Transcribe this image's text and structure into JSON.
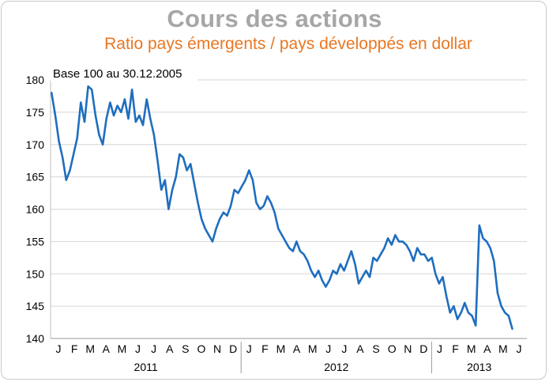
{
  "chart_data": {
    "type": "line",
    "title": "Cours des actions",
    "subtitle": "Ratio pays émergents / pays développés en dollar",
    "annotation": "Base 100 au 30.12.2005",
    "ylim": [
      140,
      180
    ],
    "yticks": [
      140,
      145,
      150,
      155,
      160,
      165,
      170,
      175,
      180
    ],
    "month_labels": [
      "J",
      "F",
      "M",
      "A",
      "M",
      "J",
      "J",
      "A",
      "S",
      "O",
      "N",
      "D",
      "J",
      "F",
      "M",
      "A",
      "M",
      "J",
      "J",
      "A",
      "S",
      "O",
      "N",
      "D",
      "J",
      "F",
      "M",
      "A",
      "M",
      "J"
    ],
    "years": [
      "2011",
      "2012",
      "2013"
    ],
    "grid": true,
    "color": "#1f6ebf",
    "series": [
      {
        "x": [
          "2011-01-03",
          "2011-01-10",
          "2011-01-17",
          "2011-01-24",
          "2011-01-31",
          "2011-02-07",
          "2011-02-14",
          "2011-02-21",
          "2011-02-28",
          "2011-03-07",
          "2011-03-14",
          "2011-03-21",
          "2011-03-28",
          "2011-04-04",
          "2011-04-11",
          "2011-04-18",
          "2011-04-25",
          "2011-05-02",
          "2011-05-09",
          "2011-05-16",
          "2011-05-23",
          "2011-05-30",
          "2011-06-06",
          "2011-06-13",
          "2011-06-20",
          "2011-06-27",
          "2011-07-04",
          "2011-07-11",
          "2011-07-18",
          "2011-07-25",
          "2011-08-01",
          "2011-08-08",
          "2011-08-15",
          "2011-08-22",
          "2011-08-29",
          "2011-09-05",
          "2011-09-12",
          "2011-09-19",
          "2011-09-26",
          "2011-10-03",
          "2011-10-10",
          "2011-10-17",
          "2011-10-24",
          "2011-10-31",
          "2011-11-07",
          "2011-11-14",
          "2011-11-21",
          "2011-11-28",
          "2011-12-05",
          "2011-12-12",
          "2011-12-19",
          "2011-12-26",
          "2012-01-02",
          "2012-01-09",
          "2012-01-16",
          "2012-01-23",
          "2012-01-30",
          "2012-02-06",
          "2012-02-13",
          "2012-02-20",
          "2012-02-27",
          "2012-03-05",
          "2012-03-12",
          "2012-03-19",
          "2012-03-26",
          "2012-04-02",
          "2012-04-09",
          "2012-04-16",
          "2012-04-23",
          "2012-04-30",
          "2012-05-07",
          "2012-05-14",
          "2012-05-21",
          "2012-05-28",
          "2012-06-04",
          "2012-06-11",
          "2012-06-18",
          "2012-06-25",
          "2012-07-02",
          "2012-07-09",
          "2012-07-16",
          "2012-07-23",
          "2012-07-30",
          "2012-08-06",
          "2012-08-13",
          "2012-08-20",
          "2012-08-27",
          "2012-09-03",
          "2012-09-10",
          "2012-09-17",
          "2012-09-24",
          "2012-10-01",
          "2012-10-08",
          "2012-10-15",
          "2012-10-22",
          "2012-10-29",
          "2012-11-05",
          "2012-11-12",
          "2012-11-19",
          "2012-11-26",
          "2012-12-03",
          "2012-12-10",
          "2012-12-17",
          "2012-12-24",
          "2012-12-31",
          "2013-01-07",
          "2013-01-14",
          "2013-01-21",
          "2013-01-28",
          "2013-02-04",
          "2013-02-11",
          "2013-02-18",
          "2013-02-25",
          "2013-03-04",
          "2013-03-11",
          "2013-03-18",
          "2013-03-25",
          "2013-04-01",
          "2013-04-08",
          "2013-04-15",
          "2013-04-22",
          "2013-04-29",
          "2013-05-06",
          "2013-05-13",
          "2013-05-20",
          "2013-05-27",
          "2013-06-03"
        ],
        "values": [
          178.0,
          174.5,
          170.5,
          168.0,
          164.5,
          166.0,
          168.5,
          171.0,
          176.5,
          173.5,
          179.0,
          178.5,
          174.5,
          171.5,
          170.0,
          174.0,
          176.5,
          174.5,
          176.0,
          175.0,
          177.0,
          174.0,
          178.5,
          173.5,
          174.5,
          173.0,
          177.0,
          174.0,
          171.5,
          167.5,
          163.0,
          164.5,
          160.0,
          163.0,
          165.0,
          168.5,
          168.0,
          166.0,
          167.0,
          164.0,
          161.0,
          158.5,
          157.0,
          156.0,
          155.0,
          157.0,
          158.5,
          159.5,
          159.0,
          160.5,
          163.0,
          162.5,
          163.5,
          164.5,
          166.0,
          164.5,
          161.0,
          160.0,
          160.5,
          162.0,
          161.0,
          159.5,
          157.0,
          156.0,
          155.0,
          154.0,
          153.5,
          155.0,
          153.5,
          153.0,
          152.0,
          150.5,
          149.5,
          150.5,
          149.0,
          148.0,
          149.0,
          150.5,
          150.0,
          151.5,
          150.5,
          152.0,
          153.5,
          151.5,
          148.5,
          149.5,
          150.5,
          149.5,
          152.5,
          152.0,
          153.0,
          154.0,
          155.5,
          154.5,
          156.0,
          155.0,
          155.0,
          154.5,
          153.5,
          152.0,
          154.0,
          153.0,
          153.0,
          152.0,
          152.5,
          150.0,
          148.5,
          149.5,
          146.5,
          144.0,
          145.0,
          143.0,
          144.0,
          145.5,
          144.0,
          143.5,
          142.0,
          157.5,
          155.5,
          155.0,
          154.0,
          152.0,
          147.0,
          145.0,
          144.0,
          143.5,
          141.5
        ]
      }
    ]
  }
}
